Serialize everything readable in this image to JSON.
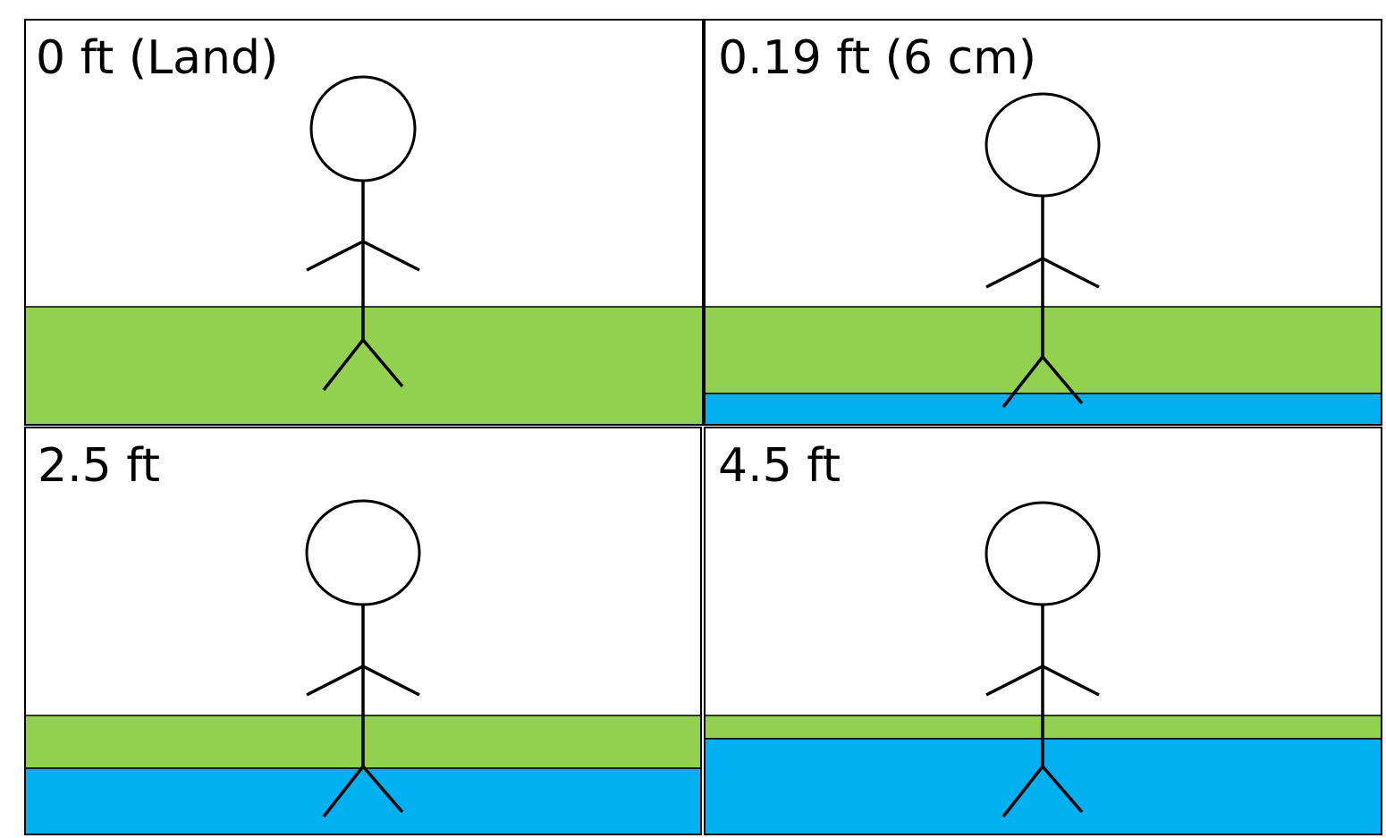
{
  "colors": {
    "land": "#92d050",
    "water": "#00b0f0",
    "outline": "#000000",
    "background": "#ffffff"
  },
  "panels": [
    {
      "id": "land",
      "label": "0 ft (Land)",
      "land_visible": true,
      "water_visible": false,
      "figure_position": "standing on land surface"
    },
    {
      "id": "six-cm",
      "label": "0.19 ft (6 cm)",
      "land_visible": true,
      "water_visible": true,
      "figure_position": "feet at water surface"
    },
    {
      "id": "two-point-five-ft",
      "label": "2.5 ft",
      "land_visible": true,
      "water_visible": true,
      "figure_position": "standing in water"
    },
    {
      "id": "four-point-five-ft",
      "label": "4.5 ft",
      "land_visible": true,
      "water_visible": true,
      "figure_position": "standing in deeper water"
    }
  ]
}
